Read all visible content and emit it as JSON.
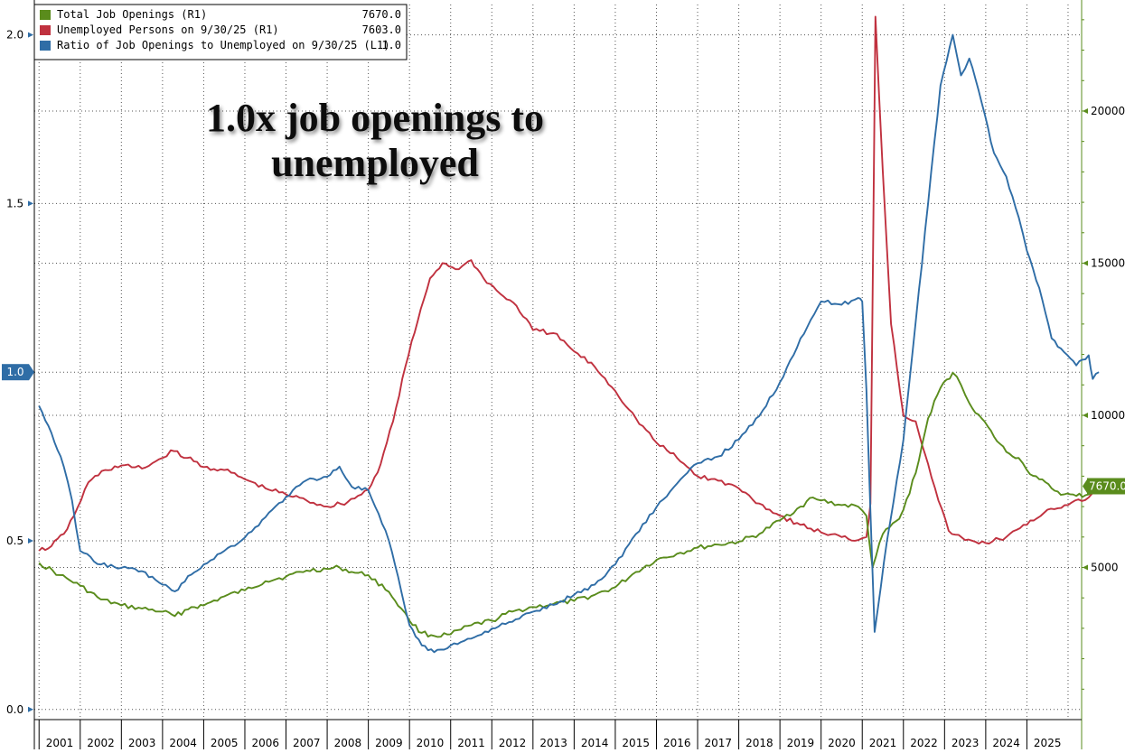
{
  "chart_data": {
    "type": "line",
    "title": "1.0x job openings to unemployed",
    "title_lines": [
      "1.0x job openings to",
      "unemployed"
    ],
    "left_axis": {
      "ylim": [
        -0.03,
        2.09
      ],
      "ticks": [
        0.0,
        0.5,
        1.0,
        1.5,
        2.0
      ],
      "tick_labels": [
        "0.0",
        "0.5",
        "1.0",
        "1.5",
        "2.0"
      ]
    },
    "right_axis": {
      "ylim": [
        0,
        23500
      ],
      "ticks": [
        5000,
        10000,
        15000,
        20000
      ],
      "tick_labels": [
        "5000",
        "10000",
        "15000",
        "20000"
      ]
    },
    "x_years": [
      "2001",
      "2002",
      "2003",
      "2004",
      "2005",
      "2006",
      "2007",
      "2008",
      "2009",
      "2010",
      "2011",
      "2012",
      "2013",
      "2014",
      "2015",
      "2016",
      "2017",
      "2018",
      "2019",
      "2020",
      "2021",
      "2022",
      "2023",
      "2024",
      "2025"
    ],
    "grid": true,
    "legend_position": "top-left",
    "series": [
      {
        "name": "Total Job Openings (R1)",
        "axis": "right",
        "last_value": "7670.0",
        "color": "#5a8c1c",
        "points": [
          [
            2000.0,
            5150
          ],
          [
            2000.5,
            4750
          ],
          [
            2001.0,
            4400
          ],
          [
            2001.5,
            3950
          ],
          [
            2002.0,
            3750
          ],
          [
            2002.5,
            3650
          ],
          [
            2003.0,
            3550
          ],
          [
            2003.3,
            3400
          ],
          [
            2003.7,
            3700
          ],
          [
            2004.0,
            3750
          ],
          [
            2004.5,
            4050
          ],
          [
            2005.0,
            4250
          ],
          [
            2005.5,
            4550
          ],
          [
            2006.0,
            4700
          ],
          [
            2006.5,
            4900
          ],
          [
            2007.0,
            4950
          ],
          [
            2007.3,
            5000
          ],
          [
            2007.6,
            4850
          ],
          [
            2008.0,
            4750
          ],
          [
            2008.5,
            4200
          ],
          [
            2008.8,
            3650
          ],
          [
            2009.0,
            3250
          ],
          [
            2009.3,
            2850
          ],
          [
            2009.6,
            2750
          ],
          [
            2010.0,
            2800
          ],
          [
            2010.5,
            3100
          ],
          [
            2011.0,
            3250
          ],
          [
            2011.5,
            3550
          ],
          [
            2012.0,
            3700
          ],
          [
            2012.5,
            3800
          ],
          [
            2013.0,
            3900
          ],
          [
            2013.5,
            4100
          ],
          [
            2014.0,
            4350
          ],
          [
            2014.5,
            4850
          ],
          [
            2015.0,
            5250
          ],
          [
            2015.5,
            5450
          ],
          [
            2016.0,
            5650
          ],
          [
            2016.5,
            5750
          ],
          [
            2017.0,
            5850
          ],
          [
            2017.5,
            6100
          ],
          [
            2018.0,
            6550
          ],
          [
            2018.5,
            7000
          ],
          [
            2018.8,
            7300
          ],
          [
            2019.0,
            7200
          ],
          [
            2019.5,
            7050
          ],
          [
            2019.9,
            7000
          ],
          [
            2020.1,
            6700
          ],
          [
            2020.25,
            5000
          ],
          [
            2020.5,
            6100
          ],
          [
            2020.9,
            6600
          ],
          [
            2021.0,
            6900
          ],
          [
            2021.3,
            8100
          ],
          [
            2021.6,
            9900
          ],
          [
            2021.9,
            10900
          ],
          [
            2022.2,
            11400
          ],
          [
            2022.4,
            11000
          ],
          [
            2022.6,
            10400
          ],
          [
            2022.9,
            9900
          ],
          [
            2023.2,
            9300
          ],
          [
            2023.5,
            8800
          ],
          [
            2023.8,
            8600
          ],
          [
            2024.0,
            8200
          ],
          [
            2024.3,
            7900
          ],
          [
            2024.6,
            7600
          ],
          [
            2024.9,
            7400
          ],
          [
            2025.2,
            7350
          ],
          [
            2025.5,
            7400
          ],
          [
            2025.75,
            7670
          ]
        ]
      },
      {
        "name": "Unemployed Persons on 9/30/25 (R1)",
        "axis": "right",
        "last_value": "7603.0",
        "color": "#c0313f",
        "points": [
          [
            2000.0,
            5550
          ],
          [
            2000.3,
            5700
          ],
          [
            2000.6,
            6100
          ],
          [
            2000.85,
            6700
          ],
          [
            2001.2,
            7800
          ],
          [
            2001.6,
            8200
          ],
          [
            2002.0,
            8350
          ],
          [
            2002.5,
            8250
          ],
          [
            2003.0,
            8600
          ],
          [
            2003.2,
            8850
          ],
          [
            2003.6,
            8600
          ],
          [
            2004.0,
            8300
          ],
          [
            2004.5,
            8200
          ],
          [
            2005.0,
            7900
          ],
          [
            2005.5,
            7600
          ],
          [
            2006.0,
            7400
          ],
          [
            2006.5,
            7200
          ],
          [
            2007.0,
            7000
          ],
          [
            2007.5,
            7150
          ],
          [
            2008.0,
            7550
          ],
          [
            2008.3,
            8400
          ],
          [
            2008.6,
            9800
          ],
          [
            2008.9,
            11600
          ],
          [
            2009.2,
            13100
          ],
          [
            2009.5,
            14500
          ],
          [
            2009.8,
            15000
          ],
          [
            2010.2,
            14800
          ],
          [
            2010.5,
            15100
          ],
          [
            2010.8,
            14500
          ],
          [
            2011.2,
            14000
          ],
          [
            2011.6,
            13600
          ],
          [
            2012.0,
            12800
          ],
          [
            2012.5,
            12700
          ],
          [
            2013.0,
            12100
          ],
          [
            2013.5,
            11600
          ],
          [
            2014.0,
            10800
          ],
          [
            2014.5,
            9900
          ],
          [
            2015.0,
            9100
          ],
          [
            2015.5,
            8600
          ],
          [
            2016.0,
            8000
          ],
          [
            2016.5,
            7850
          ],
          [
            2017.0,
            7600
          ],
          [
            2017.5,
            7100
          ],
          [
            2018.0,
            6700
          ],
          [
            2018.5,
            6400
          ],
          [
            2019.0,
            6150
          ],
          [
            2019.5,
            6000
          ],
          [
            2019.9,
            5900
          ],
          [
            2020.1,
            6000
          ],
          [
            2020.2,
            7100
          ],
          [
            2020.32,
            23100
          ],
          [
            2020.5,
            18000
          ],
          [
            2020.7,
            13000
          ],
          [
            2021.0,
            10000
          ],
          [
            2021.3,
            9800
          ],
          [
            2021.6,
            8400
          ],
          [
            2021.85,
            7200
          ],
          [
            2022.1,
            6200
          ],
          [
            2022.5,
            5900
          ],
          [
            2023.0,
            5800
          ],
          [
            2023.5,
            6000
          ],
          [
            2024.0,
            6400
          ],
          [
            2024.5,
            6900
          ],
          [
            2025.0,
            7050
          ],
          [
            2025.5,
            7300
          ],
          [
            2025.75,
            7603
          ]
        ]
      },
      {
        "name": "Ratio of Job Openings to Unemployed on 9/30/25 (L1)",
        "axis": "left",
        "last_value": "1.0",
        "color": "#2f6da6",
        "points": [
          [
            2000.0,
            0.9
          ],
          [
            2000.3,
            0.82
          ],
          [
            2000.6,
            0.72
          ],
          [
            2000.8,
            0.62
          ],
          [
            2001.0,
            0.47
          ],
          [
            2001.5,
            0.43
          ],
          [
            2002.0,
            0.42
          ],
          [
            2002.5,
            0.41
          ],
          [
            2003.0,
            0.37
          ],
          [
            2003.3,
            0.35
          ],
          [
            2003.7,
            0.4
          ],
          [
            2004.0,
            0.43
          ],
          [
            2004.5,
            0.47
          ],
          [
            2005.0,
            0.51
          ],
          [
            2005.5,
            0.57
          ],
          [
            2006.0,
            0.63
          ],
          [
            2006.5,
            0.68
          ],
          [
            2007.0,
            0.69
          ],
          [
            2007.3,
            0.72
          ],
          [
            2007.6,
            0.66
          ],
          [
            2008.0,
            0.65
          ],
          [
            2008.5,
            0.5
          ],
          [
            2008.8,
            0.35
          ],
          [
            2009.0,
            0.25
          ],
          [
            2009.3,
            0.19
          ],
          [
            2009.6,
            0.17
          ],
          [
            2010.0,
            0.19
          ],
          [
            2010.5,
            0.21
          ],
          [
            2011.0,
            0.24
          ],
          [
            2011.5,
            0.26
          ],
          [
            2012.0,
            0.29
          ],
          [
            2012.5,
            0.31
          ],
          [
            2013.0,
            0.34
          ],
          [
            2013.5,
            0.37
          ],
          [
            2014.0,
            0.43
          ],
          [
            2014.5,
            0.52
          ],
          [
            2015.0,
            0.6
          ],
          [
            2015.5,
            0.67
          ],
          [
            2016.0,
            0.73
          ],
          [
            2016.5,
            0.75
          ],
          [
            2017.0,
            0.8
          ],
          [
            2017.5,
            0.87
          ],
          [
            2018.0,
            0.97
          ],
          [
            2018.5,
            1.1
          ],
          [
            2019.0,
            1.21
          ],
          [
            2019.5,
            1.2
          ],
          [
            2019.9,
            1.22
          ],
          [
            2020.0,
            1.21
          ],
          [
            2020.1,
            0.95
          ],
          [
            2020.3,
            0.23
          ],
          [
            2020.6,
            0.5
          ],
          [
            2021.0,
            0.8
          ],
          [
            2021.3,
            1.15
          ],
          [
            2021.6,
            1.5
          ],
          [
            2021.9,
            1.85
          ],
          [
            2022.2,
            2.0
          ],
          [
            2022.4,
            1.88
          ],
          [
            2022.6,
            1.93
          ],
          [
            2022.9,
            1.8
          ],
          [
            2023.2,
            1.65
          ],
          [
            2023.5,
            1.58
          ],
          [
            2023.8,
            1.46
          ],
          [
            2024.0,
            1.36
          ],
          [
            2024.3,
            1.25
          ],
          [
            2024.6,
            1.1
          ],
          [
            2024.9,
            1.06
          ],
          [
            2025.2,
            1.02
          ],
          [
            2025.5,
            1.05
          ],
          [
            2025.6,
            0.98
          ],
          [
            2025.75,
            1.0
          ]
        ]
      }
    ],
    "colors": {
      "openings": "#5a8c1c",
      "unemployed": "#c0313f",
      "ratio": "#2f6da6"
    }
  },
  "badges": {
    "left_current": "1.0",
    "right_current": "7670.0"
  }
}
